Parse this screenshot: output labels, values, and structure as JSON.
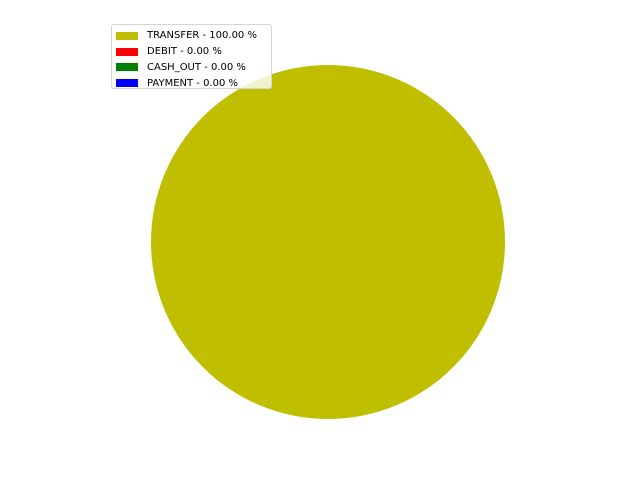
{
  "chart_data": {
    "type": "pie",
    "title": "",
    "categories": [
      "TRANSFER",
      "DEBIT",
      "CASH_OUT",
      "PAYMENT"
    ],
    "values": [
      100.0,
      0.0,
      0.0,
      0.0
    ],
    "colors": [
      "#bfbf00",
      "#ff0000",
      "#008000",
      "#0000ff"
    ],
    "legend": {
      "position": "upper-left",
      "entries": [
        {
          "label": "TRANSFER - 100.00 %",
          "color": "#bfbf00"
        },
        {
          "label": "DEBIT - 0.00 %",
          "color": "#ff0000"
        },
        {
          "label": "CASH_OUT - 0.00 %",
          "color": "#008000"
        },
        {
          "label": "PAYMENT - 0.00 %",
          "color": "#0000ff"
        }
      ]
    }
  }
}
